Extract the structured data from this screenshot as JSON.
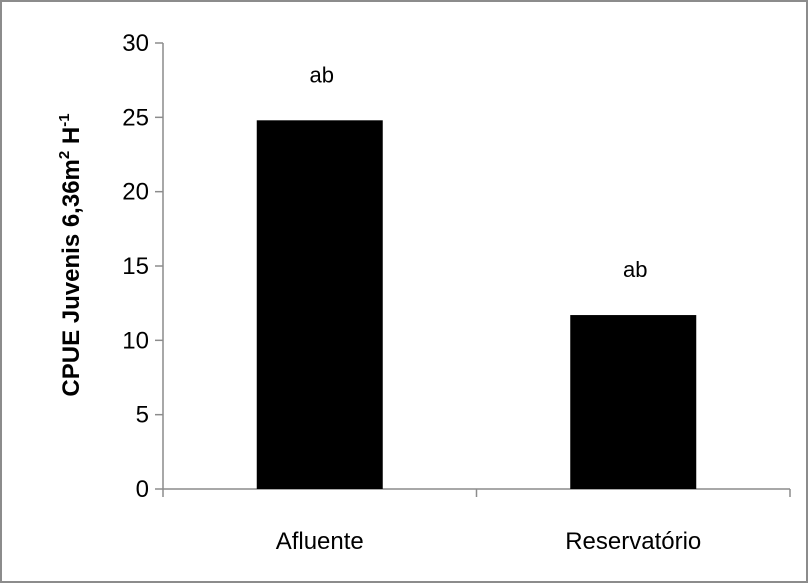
{
  "chart_data": {
    "type": "bar",
    "categories": [
      "Afluente",
      "Reservatório"
    ],
    "values": [
      24.8,
      11.7
    ],
    "data_labels": [
      "ab",
      "ab"
    ],
    "ylabel": {
      "main": "CPUE Juvenis 6,36m",
      "sup1": "2",
      "mid": " H",
      "sup2": "-1"
    },
    "ylim": [
      0,
      30
    ],
    "yticks": [
      "0",
      "5",
      "10",
      "15",
      "20",
      "25",
      "30"
    ],
    "bar_color": "#000000",
    "grid": false,
    "legend": "none"
  }
}
